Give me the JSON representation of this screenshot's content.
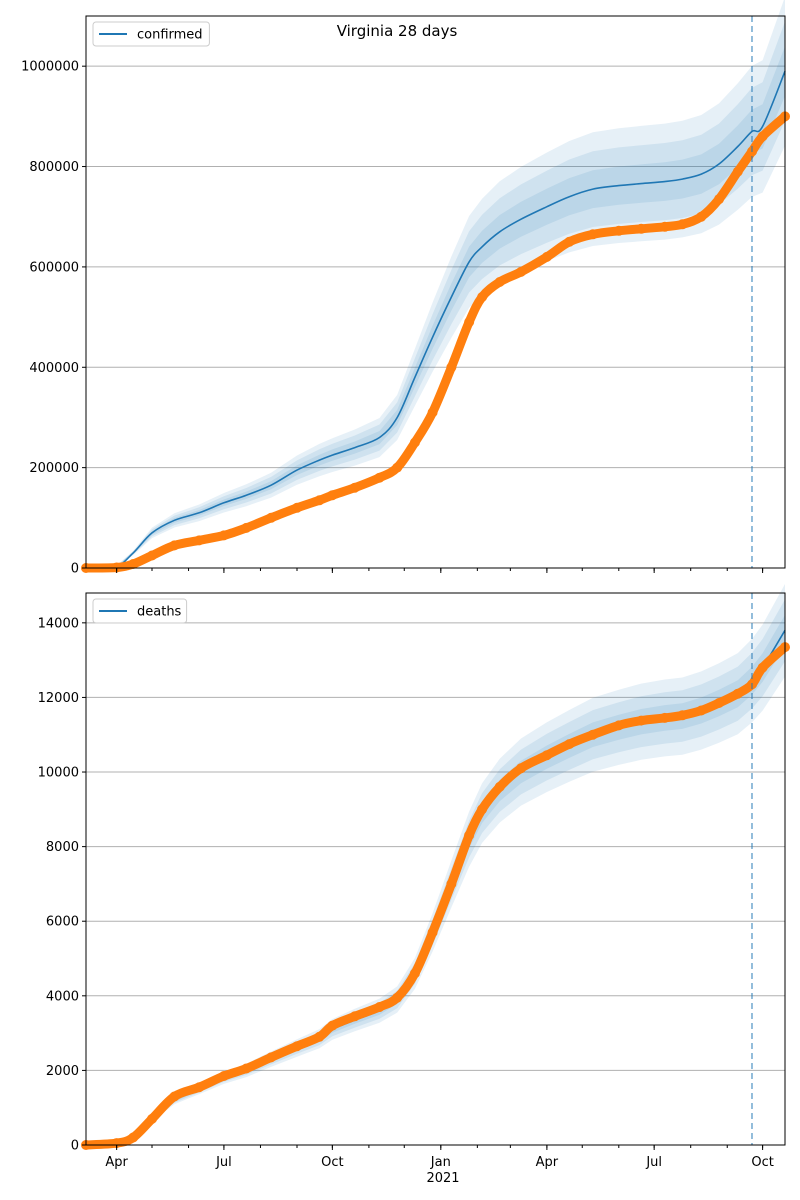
{
  "figure": {
    "title": "Virginia 28 days",
    "year_label": "2021"
  },
  "colors": {
    "model": "#1f77b4",
    "observed": "#ff7f0e",
    "grid": "#b0b0b0",
    "band": "#1f77b4"
  },
  "chart_data": [
    {
      "type": "line",
      "name": "confirmed",
      "legend": "confirmed",
      "legend_position": "top-left",
      "xlim": [
        "2020-03-06",
        "2021-10-20"
      ],
      "ylim": [
        0,
        1100000
      ],
      "yticks": [
        0,
        200000,
        400000,
        600000,
        800000,
        1000000
      ],
      "ytick_labels": [
        "0",
        "200000",
        "400000",
        "600000",
        "800000",
        "1000000"
      ],
      "xticks": [
        "2020-04-01",
        "2020-07-01",
        "2020-10-01",
        "2021-01-01",
        "2021-04-01",
        "2021-07-01",
        "2021-10-01"
      ],
      "xtick_labels": [
        "Apr",
        "Jul",
        "Oct",
        "Jan",
        "Apr",
        "Jul",
        "Oct"
      ],
      "forecast_start": "2021-09-22",
      "model": {
        "x": [
          "2020-03-06",
          "2020-03-31",
          "2020-04-15",
          "2020-05-01",
          "2020-05-20",
          "2020-06-10",
          "2020-07-01",
          "2020-07-20",
          "2020-08-10",
          "2020-09-01",
          "2020-09-20",
          "2020-10-01",
          "2020-10-20",
          "2020-11-10",
          "2020-11-25",
          "2020-12-10",
          "2020-12-25",
          "2021-01-10",
          "2021-01-25",
          "2021-02-05",
          "2021-02-20",
          "2021-03-10",
          "2021-04-01",
          "2021-04-20",
          "2021-05-10",
          "2021-06-01",
          "2021-06-20",
          "2021-07-10",
          "2021-07-25",
          "2021-08-10",
          "2021-08-25",
          "2021-09-10",
          "2021-09-22",
          "2021-10-01",
          "2021-10-20"
        ],
        "y": [
          0,
          2000,
          30000,
          70000,
          95000,
          110000,
          130000,
          145000,
          165000,
          195000,
          215000,
          225000,
          240000,
          260000,
          300000,
          380000,
          460000,
          540000,
          610000,
          640000,
          670000,
          695000,
          720000,
          740000,
          755000,
          762000,
          766000,
          770000,
          775000,
          785000,
          805000,
          840000,
          870000,
          880000,
          990000
        ]
      },
      "bands": [
        {
          "level": 0.95,
          "lower_ratio": 0.85,
          "upper_ratio": 1.15
        },
        {
          "level": 0.8,
          "lower_ratio": 0.9,
          "upper_ratio": 1.1
        },
        {
          "level": 0.5,
          "lower_ratio": 0.95,
          "upper_ratio": 1.05
        }
      ],
      "observed": {
        "x": [
          "2020-03-06",
          "2020-04-01",
          "2020-04-15",
          "2020-05-01",
          "2020-05-20",
          "2020-06-10",
          "2020-07-01",
          "2020-07-20",
          "2020-08-10",
          "2020-09-01",
          "2020-09-20",
          "2020-10-01",
          "2020-10-20",
          "2020-11-10",
          "2020-11-25",
          "2020-12-10",
          "2020-12-25",
          "2021-01-10",
          "2021-01-25",
          "2021-02-05",
          "2021-02-20",
          "2021-03-10",
          "2021-04-01",
          "2021-04-20",
          "2021-05-10",
          "2021-06-01",
          "2021-06-20",
          "2021-07-10",
          "2021-07-25",
          "2021-08-10",
          "2021-08-25",
          "2021-09-10",
          "2021-09-22",
          "2021-10-01",
          "2021-10-20"
        ],
        "y": [
          0,
          1000,
          8000,
          25000,
          45000,
          55000,
          65000,
          80000,
          100000,
          120000,
          135000,
          145000,
          160000,
          180000,
          200000,
          250000,
          310000,
          400000,
          490000,
          540000,
          570000,
          590000,
          620000,
          650000,
          665000,
          672000,
          676000,
          680000,
          685000,
          700000,
          735000,
          790000,
          830000,
          860000,
          900000
        ]
      }
    },
    {
      "type": "line",
      "name": "deaths",
      "legend": "deaths",
      "legend_position": "top-left",
      "xlim": [
        "2020-03-06",
        "2021-10-20"
      ],
      "ylim": [
        0,
        14800
      ],
      "yticks": [
        0,
        2000,
        4000,
        6000,
        8000,
        10000,
        12000,
        14000
      ],
      "ytick_labels": [
        "0",
        "2000",
        "4000",
        "6000",
        "8000",
        "10000",
        "12000",
        "14000"
      ],
      "xticks": [
        "2020-04-01",
        "2020-07-01",
        "2020-10-01",
        "2021-01-01",
        "2021-04-01",
        "2021-07-01",
        "2021-10-01"
      ],
      "xtick_labels": [
        "Apr",
        "Jul",
        "Oct",
        "Jan",
        "Apr",
        "Jul",
        "Oct"
      ],
      "forecast_start": "2021-09-22",
      "model": {
        "x": [
          "2020-03-06",
          "2020-04-01",
          "2020-04-15",
          "2020-05-01",
          "2020-05-20",
          "2020-06-10",
          "2020-07-01",
          "2020-07-20",
          "2020-08-10",
          "2020-09-01",
          "2020-09-20",
          "2020-10-01",
          "2020-10-20",
          "2020-11-10",
          "2020-11-25",
          "2020-12-10",
          "2020-12-25",
          "2021-01-10",
          "2021-01-25",
          "2021-02-05",
          "2021-02-20",
          "2021-03-10",
          "2021-04-01",
          "2021-04-20",
          "2021-05-10",
          "2021-06-01",
          "2021-06-20",
          "2021-07-10",
          "2021-07-25",
          "2021-08-10",
          "2021-08-25",
          "2021-09-10",
          "2021-09-22",
          "2021-10-01",
          "2021-10-20"
        ],
        "y": [
          0,
          50,
          200,
          700,
          1200,
          1500,
          1800,
          2000,
          2300,
          2600,
          2850,
          3100,
          3350,
          3600,
          3900,
          4600,
          5700,
          7000,
          8200,
          8900,
          9500,
          10000,
          10400,
          10700,
          11000,
          11200,
          11350,
          11450,
          11500,
          11650,
          11850,
          12100,
          12450,
          12800,
          13800
        ]
      },
      "bands": [
        {
          "level": 0.95,
          "lower_ratio": 0.91,
          "upper_ratio": 1.09
        },
        {
          "level": 0.8,
          "lower_ratio": 0.94,
          "upper_ratio": 1.06
        },
        {
          "level": 0.5,
          "lower_ratio": 0.97,
          "upper_ratio": 1.03
        }
      ],
      "observed": {
        "x": [
          "2020-03-06",
          "2020-04-01",
          "2020-04-15",
          "2020-05-01",
          "2020-05-20",
          "2020-06-10",
          "2020-07-01",
          "2020-07-20",
          "2020-08-10",
          "2020-09-01",
          "2020-09-20",
          "2020-10-01",
          "2020-10-20",
          "2020-11-10",
          "2020-11-25",
          "2020-12-10",
          "2020-12-25",
          "2021-01-10",
          "2021-01-25",
          "2021-02-05",
          "2021-02-20",
          "2021-03-10",
          "2021-04-01",
          "2021-04-20",
          "2021-05-10",
          "2021-06-01",
          "2021-06-20",
          "2021-07-10",
          "2021-07-25",
          "2021-08-10",
          "2021-08-25",
          "2021-09-10",
          "2021-09-22",
          "2021-10-01",
          "2021-10-20"
        ],
        "y": [
          0,
          50,
          200,
          700,
          1300,
          1550,
          1850,
          2050,
          2350,
          2650,
          2900,
          3200,
          3450,
          3700,
          3950,
          4600,
          5700,
          7000,
          8300,
          9000,
          9600,
          10100,
          10450,
          10750,
          11000,
          11250,
          11380,
          11450,
          11520,
          11650,
          11850,
          12100,
          12350,
          12800,
          13350
        ]
      }
    }
  ]
}
